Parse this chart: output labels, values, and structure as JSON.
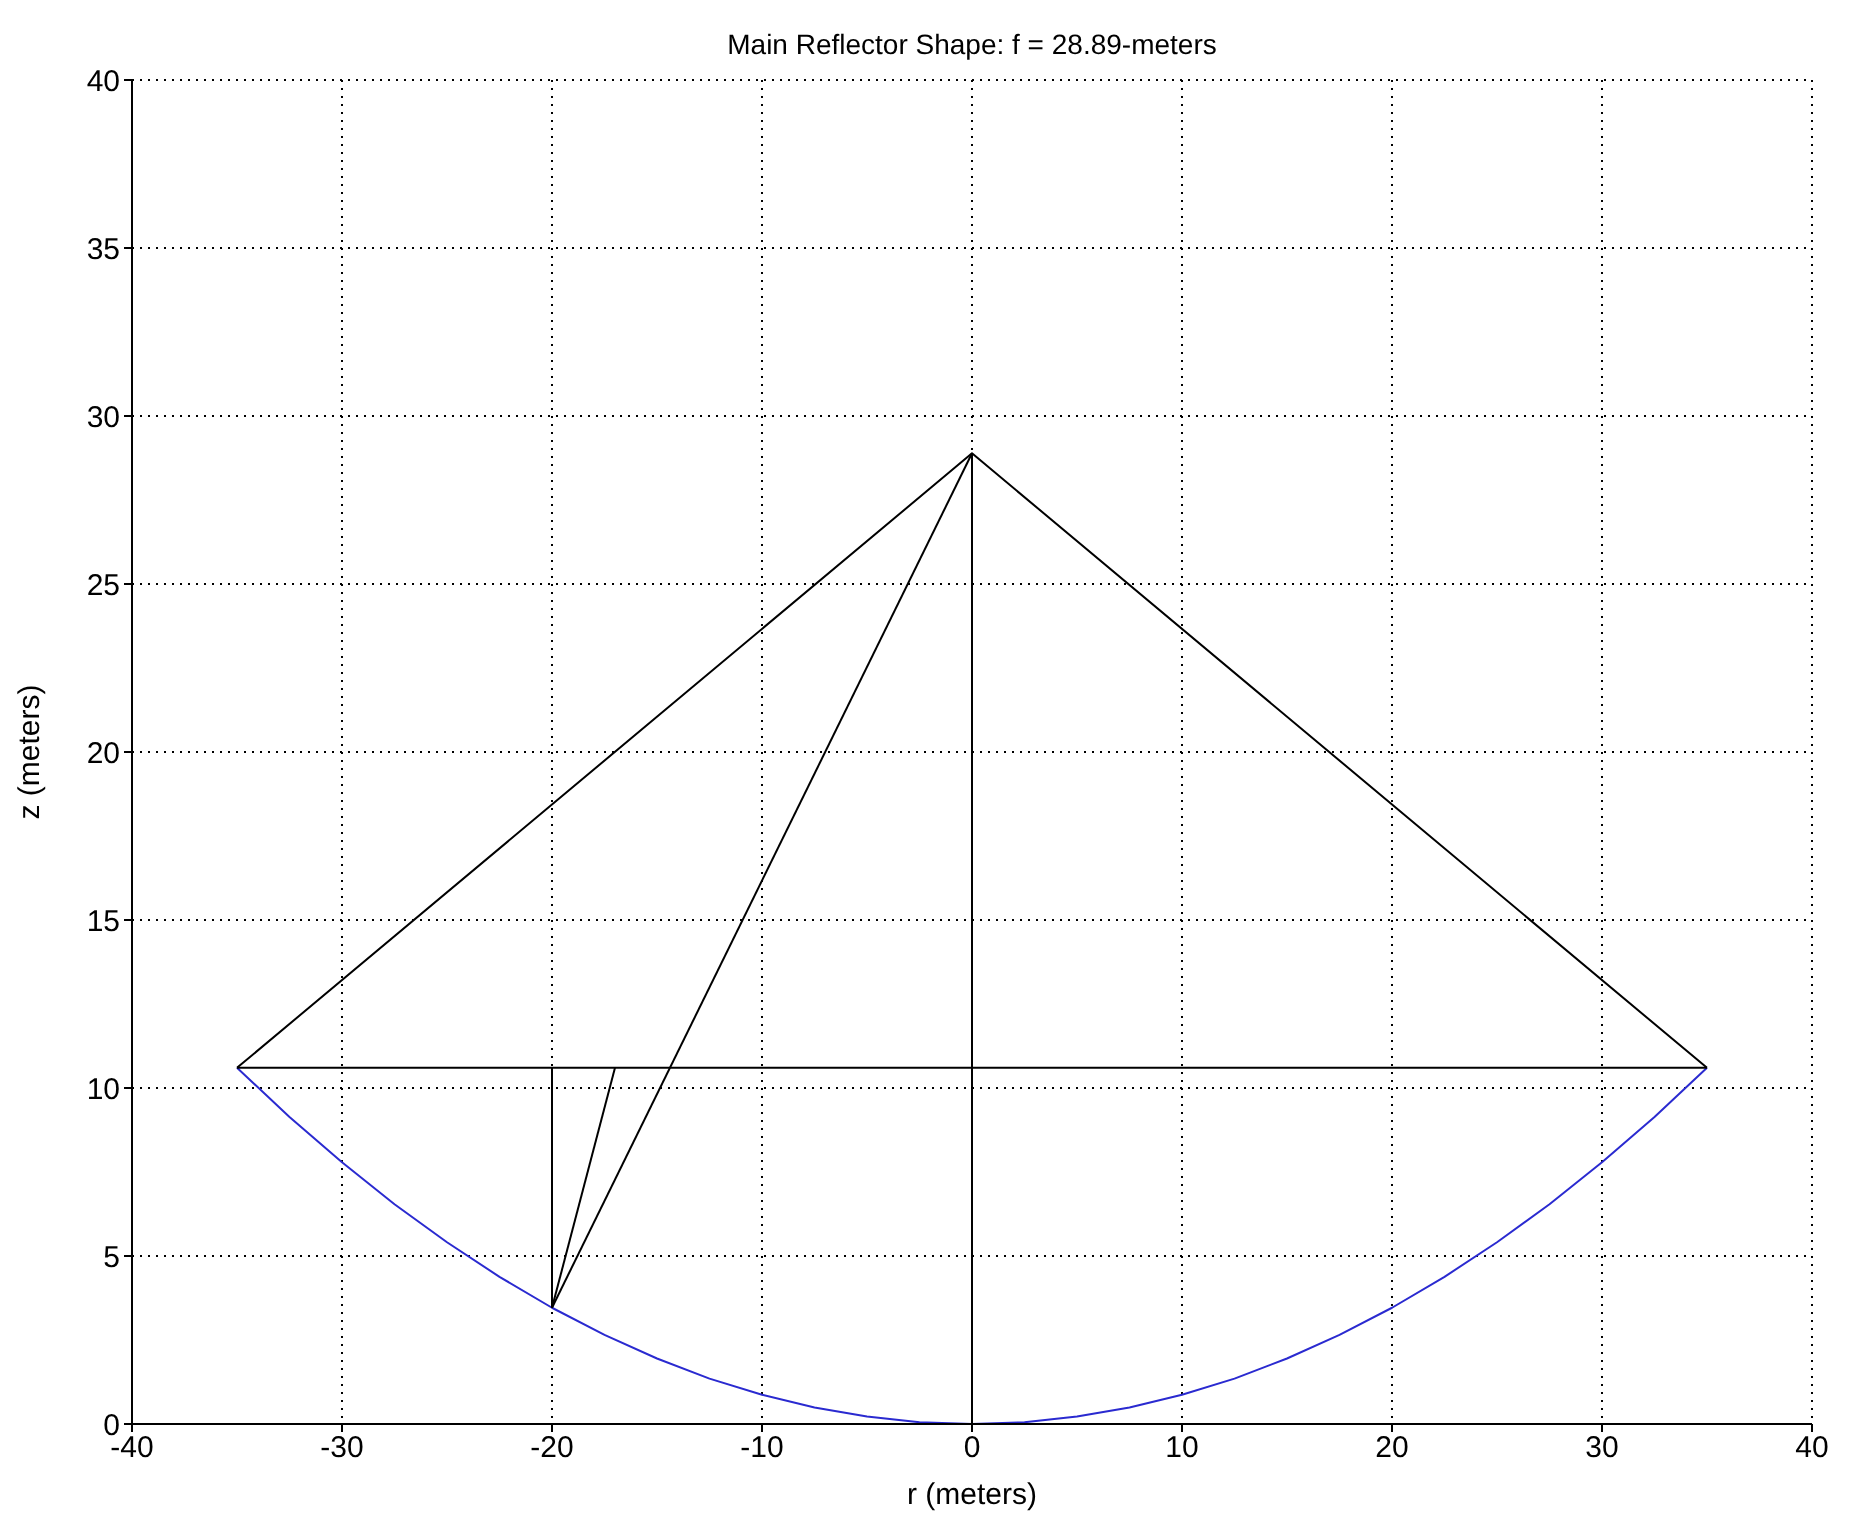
{
  "chart_data": {
    "type": "line",
    "title": "Main Reflector Shape: f = 28.89-meters",
    "xlabel": "r (meters)",
    "ylabel": "z (meters)",
    "xlim": [
      -40,
      40
    ],
    "xticks": [
      -40,
      -30,
      -20,
      -10,
      0,
      10,
      20,
      30,
      40
    ],
    "ylim": [
      0,
      40
    ],
    "yticks": [
      0,
      5,
      10,
      15,
      20,
      25,
      30,
      35,
      40
    ],
    "grid": true,
    "series": [
      {
        "color": "#2a2ad0",
        "x": [
          -35,
          -32.5,
          -30,
          -27.5,
          -25,
          -22.5,
          -20,
          -17.5,
          -15,
          -12.5,
          -10,
          -7.5,
          -5,
          -2.5,
          0,
          2.5,
          5,
          7.5,
          10,
          12.5,
          15,
          17.5,
          20,
          22.5,
          25,
          27.5,
          30,
          32.5,
          35
        ],
        "values": [
          10.6,
          9.14,
          7.79,
          6.54,
          5.41,
          4.38,
          3.46,
          2.65,
          1.95,
          1.35,
          0.87,
          0.49,
          0.22,
          0.05,
          0,
          0.05,
          0.22,
          0.49,
          0.87,
          1.35,
          1.95,
          2.65,
          3.46,
          4.38,
          5.41,
          6.54,
          7.79,
          9.14,
          10.6
        ]
      },
      {
        "color": "#000000",
        "x": [
          -35,
          0,
          35
        ],
        "values": [
          10.6,
          28.89,
          10.6
        ]
      },
      {
        "color": "#000000",
        "x": [
          -35,
          35
        ],
        "values": [
          10.6,
          10.6
        ]
      },
      {
        "color": "#000000",
        "x": [
          0,
          0
        ],
        "values": [
          0,
          28.89
        ]
      },
      {
        "color": "#000000",
        "x": [
          -20,
          -20
        ],
        "values": [
          3.46,
          10.6
        ]
      },
      {
        "color": "#000000",
        "x": [
          -20,
          0
        ],
        "values": [
          3.46,
          28.89
        ]
      },
      {
        "color": "#000000",
        "x": [
          -20,
          -17
        ],
        "values": [
          3.46,
          10.6
        ]
      }
    ]
  }
}
